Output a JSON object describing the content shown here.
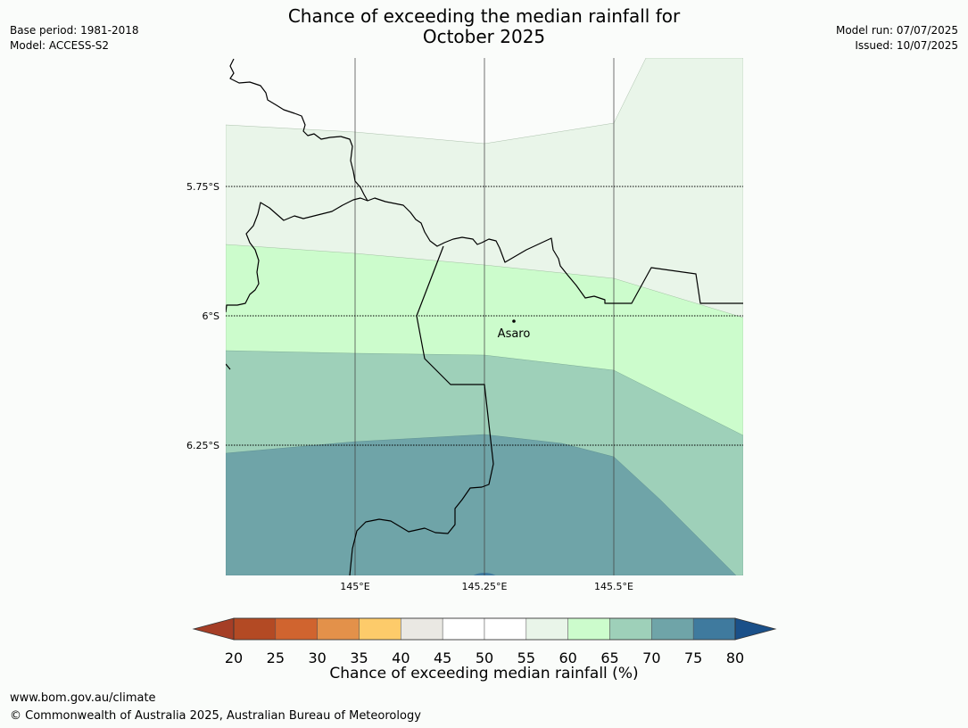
{
  "title": {
    "line1": "Chance of exceeding the median rainfall for",
    "line2": "October 2025"
  },
  "meta_left": {
    "base_period": "Base period: 1981-2018",
    "model": "Model: ACCESS-S2"
  },
  "meta_right": {
    "model_run": "Model run: 07/07/2025",
    "issued": "Issued: 10/07/2025"
  },
  "map": {
    "lat_labels": [
      "5.75°S",
      "6°S",
      "6.25°S"
    ],
    "lon_labels": [
      "145°E",
      "145.25°E",
      "145.5°E"
    ],
    "place": {
      "name": "Asaro"
    },
    "band_colors": {
      "55-60": "#e9f5e9",
      "60-65": "#ccfccc",
      "65-70": "#9ed0b9",
      "70-75": "#6fa4a8",
      "75-80": "#3f7a9e"
    }
  },
  "colorbar": {
    "title": "Chance of exceeding median rainfall (%)",
    "ticks": [
      "20",
      "25",
      "30",
      "35",
      "40",
      "45",
      "50",
      "55",
      "60",
      "65",
      "70",
      "75",
      "80"
    ],
    "colors": [
      "#a53e26",
      "#b34a24",
      "#d0642f",
      "#e3914a",
      "#fdcb6a",
      "#eae8e3",
      "#ffffff",
      "#ffffff",
      "#e9f5e9",
      "#ccfccc",
      "#9ed0b9",
      "#6fa4a8",
      "#3f7a9e",
      "#1a5089"
    ]
  },
  "footer": {
    "url": "www.bom.gov.au/climate",
    "copyright": "© Commonwealth of Australia 2025, Australian Bureau of Meteorology"
  }
}
